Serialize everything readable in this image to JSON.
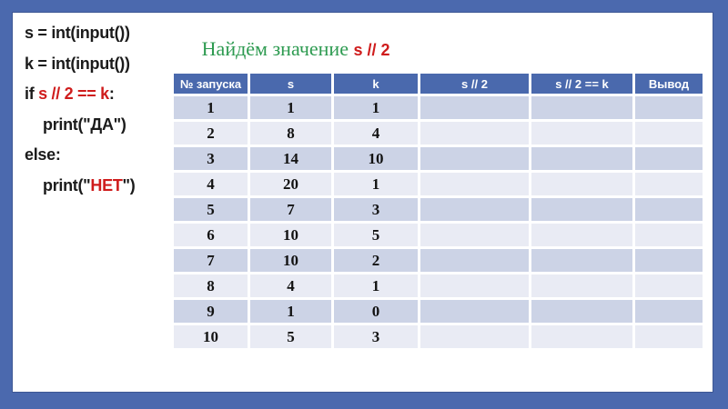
{
  "colors": {
    "frame": "#4b69ae",
    "panel": "#ffffff",
    "header-bg": "#4a69ad",
    "header-text": "#ffffff",
    "row-odd": "#ccd3e6",
    "row-even": "#e9ebf4",
    "code-text": "#1b1b1b",
    "accent-red": "#cf1c1c",
    "title-green": "#2e9b51"
  },
  "title": {
    "prefix": "Найдём значение ",
    "highlight": "s // 2"
  },
  "code": {
    "line1": "s = int(input())",
    "line2": "k = int(input())",
    "line3_keyword": "if ",
    "line3_condition": "s // 2 == k",
    "line3_colon": ":",
    "line4": "print(\"ДА\")",
    "line5": "else:",
    "line6_prefix": "print(\"",
    "line6_highlight": "НЕТ",
    "line6_suffix": "\")"
  },
  "table": {
    "headers": [
      "№ запуска",
      "s",
      "k",
      "s // 2",
      "s // 2 == k",
      "Вывод"
    ],
    "rows": [
      [
        "1",
        "1",
        "1",
        "",
        "",
        ""
      ],
      [
        "2",
        "8",
        "4",
        "",
        "",
        ""
      ],
      [
        "3",
        "14",
        "10",
        "",
        "",
        ""
      ],
      [
        "4",
        "20",
        "1",
        "",
        "",
        ""
      ],
      [
        "5",
        "7",
        "3",
        "",
        "",
        ""
      ],
      [
        "6",
        "10",
        "5",
        "",
        "",
        ""
      ],
      [
        "7",
        "10",
        "2",
        "",
        "",
        ""
      ],
      [
        "8",
        "4",
        "1",
        "",
        "",
        ""
      ],
      [
        "9",
        "1",
        "0",
        "",
        "",
        ""
      ],
      [
        "10",
        "5",
        "3",
        "",
        "",
        ""
      ]
    ]
  }
}
